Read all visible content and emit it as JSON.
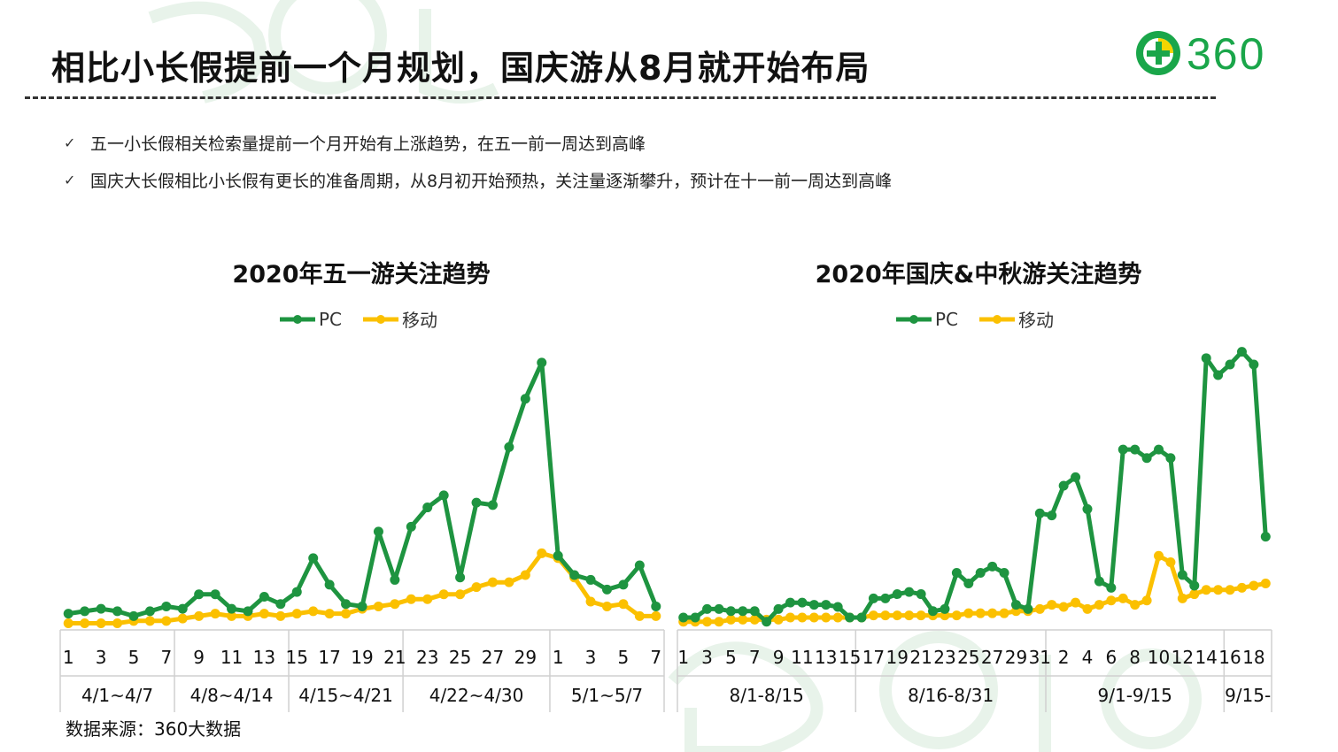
{
  "page": {
    "title": "相比小长假提前一个月规划，国庆游从8月就开始布局",
    "logo_text": "360",
    "bullets": [
      "五一小长假相关检索量提前一个月开始有上涨趋势，在五一前一周达到高峰",
      "国庆大长假相比小长假有更长的准备周期，从8月初开始预热，关注量逐渐攀升，预计在十一前一周达到高峰"
    ],
    "check_mark": "✓",
    "source": "数据来源：360大数据",
    "colors": {
      "pc": "#1E9440",
      "mobile": "#FBC000",
      "logo_green": "#1AA64A",
      "logo_yellow": "#F4D500"
    }
  },
  "chart_data": [
    {
      "type": "line",
      "title": "2020年五一游关注趋势",
      "legend": [
        "PC",
        "移动"
      ],
      "legend_position": "top",
      "x": [
        "1",
        "2",
        "3",
        "4",
        "5",
        "6",
        "7",
        "8",
        "9",
        "10",
        "11",
        "12",
        "13",
        "14",
        "15",
        "16",
        "17",
        "18",
        "19",
        "20",
        "21",
        "22",
        "23",
        "24",
        "25",
        "26",
        "27",
        "28",
        "29",
        "30",
        "1",
        "2",
        "3",
        "4",
        "5",
        "6",
        "7"
      ],
      "tick_labels": [
        "1",
        "",
        "3",
        "",
        "5",
        "",
        "7",
        "",
        "9",
        "",
        "11",
        "",
        "13",
        "",
        "15",
        "",
        "17",
        "",
        "19",
        "",
        "21",
        "",
        "23",
        "",
        "25",
        "",
        "27",
        "",
        "29",
        "",
        "1",
        "",
        "3",
        "",
        "5",
        "",
        "7"
      ],
      "groups": [
        {
          "label": "4/1~4/7",
          "count": 7
        },
        {
          "label": "4/8~4/14",
          "count": 7
        },
        {
          "label": "4/15~4/21",
          "count": 7
        },
        {
          "label": "4/22~4/30",
          "count": 9
        },
        {
          "label": "5/1~5/7",
          "count": 7
        }
      ],
      "series": [
        {
          "name": "PC",
          "color": "#1E9440",
          "values": [
            2,
            3,
            4,
            3,
            1,
            3,
            5,
            4,
            10,
            10,
            4,
            3,
            9,
            6,
            11,
            25,
            14,
            6,
            5,
            36,
            16,
            38,
            46,
            51,
            17,
            48,
            47,
            71,
            91,
            106,
            26,
            18,
            16,
            12,
            14,
            22,
            5
          ]
        },
        {
          "name": "移动",
          "color": "#FBC000",
          "values": [
            -2,
            -2,
            -2,
            -2,
            -1,
            -1,
            -1,
            0,
            1,
            2,
            1,
            1,
            2,
            1,
            2,
            3,
            2,
            2,
            4,
            5,
            6,
            8,
            8,
            10,
            10,
            13,
            15,
            15,
            18,
            27,
            25,
            17,
            7,
            5,
            6,
            1,
            1
          ]
        }
      ],
      "ylim": [
        -4,
        114
      ]
    },
    {
      "type": "line",
      "title": "2020年国庆&中秋游关注趋势",
      "legend": [
        "PC",
        "移动"
      ],
      "legend_position": "top",
      "x": [
        "1",
        "2",
        "3",
        "4",
        "5",
        "6",
        "7",
        "8",
        "9",
        "10",
        "11",
        "12",
        "13",
        "14",
        "15",
        "16",
        "17",
        "18",
        "19",
        "20",
        "21",
        "22",
        "23",
        "24",
        "25",
        "26",
        "27",
        "28",
        "29",
        "30",
        "31",
        "1",
        "2",
        "3",
        "4",
        "5",
        "6",
        "7",
        "8",
        "9",
        "10",
        "11",
        "12",
        "13",
        "14",
        "15",
        "16",
        "17",
        "18",
        "19"
      ],
      "tick_labels": [
        "1",
        "",
        "3",
        "",
        "5",
        "",
        "7",
        "",
        "9",
        "",
        "11",
        "",
        "13",
        "",
        "15",
        "",
        "17",
        "",
        "19",
        "",
        "21",
        "",
        "23",
        "",
        "25",
        "",
        "27",
        "",
        "29",
        "",
        "31",
        "",
        "2",
        "",
        "4",
        "",
        "6",
        "",
        "8",
        "",
        "10",
        "",
        "12",
        "",
        "14",
        "",
        "16",
        "",
        "18",
        ""
      ],
      "groups": [
        {
          "label": "8/1-8/15",
          "count": 15
        },
        {
          "label": "8/16-8/31",
          "count": 16
        },
        {
          "label": "9/1-9/15",
          "count": 15
        },
        {
          "label": "9/15-",
          "count": 4
        }
      ],
      "series": [
        {
          "name": "PC",
          "color": "#1E9440",
          "values": [
            1,
            1,
            5,
            5,
            4,
            4,
            4,
            -1,
            5,
            8,
            8,
            7,
            7,
            6,
            1,
            1,
            10,
            10,
            12,
            13,
            12,
            4,
            5,
            22,
            17,
            22,
            25,
            22,
            7,
            5,
            50,
            49,
            63,
            67,
            52,
            18,
            15,
            80,
            80,
            76,
            80,
            76,
            21,
            16,
            123,
            115,
            120,
            126,
            120,
            39
          ]
        },
        {
          "name": "移动",
          "color": "#FBC000",
          "values": [
            -1,
            -1,
            -1,
            -1,
            0,
            0,
            0,
            0,
            0,
            1,
            1,
            1,
            1,
            1,
            1,
            1,
            2,
            2,
            2,
            2,
            2,
            2,
            2,
            2,
            3,
            3,
            3,
            3,
            4,
            4,
            5,
            7,
            6,
            8,
            5,
            7,
            9,
            10,
            7,
            9,
            30,
            27,
            10,
            12,
            14,
            14,
            14,
            15,
            16,
            17
          ]
        }
      ],
      "ylim": [
        -4,
        130
      ]
    }
  ]
}
